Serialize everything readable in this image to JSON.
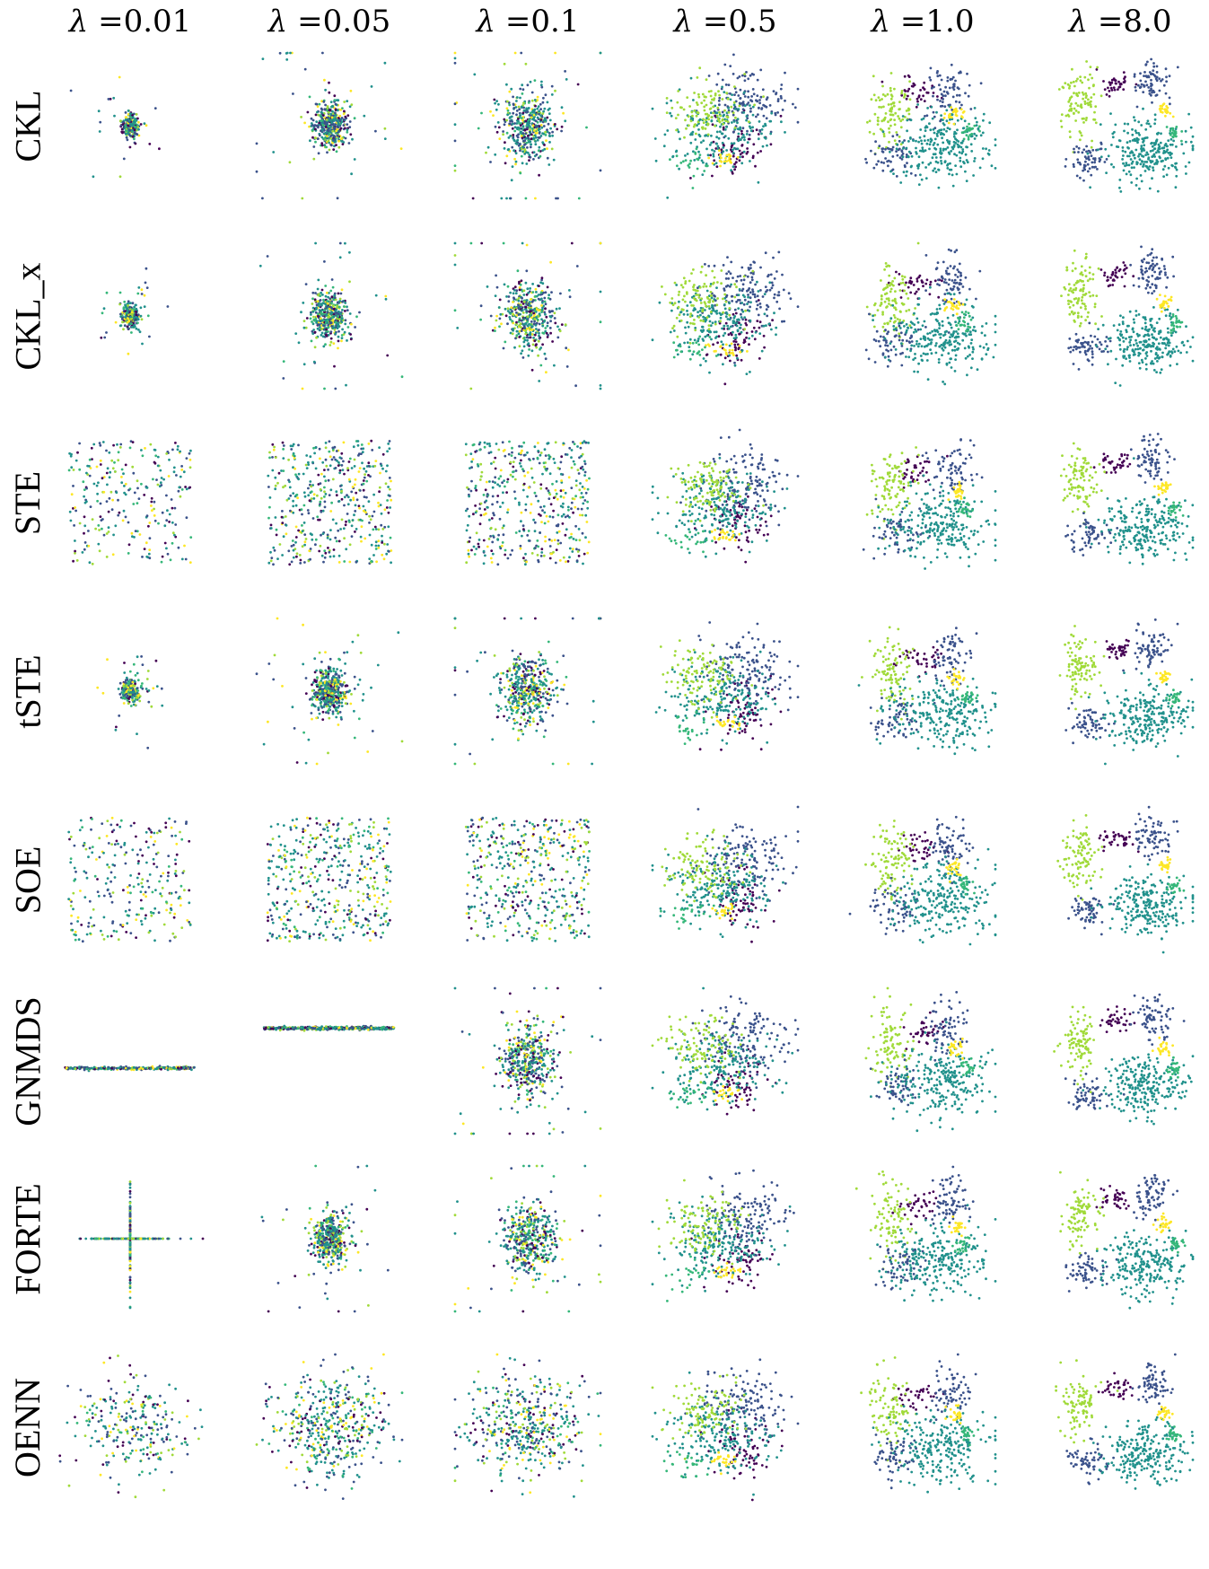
{
  "chart_data": {
    "type": "scatter",
    "title": "",
    "lambda_symbol": "λ",
    "columns": [
      "=0.01",
      "=0.05",
      "=0.1",
      "=0.5",
      "=1.0",
      "=8.0"
    ],
    "rows": [
      "CKL",
      "CKL_x",
      "STE",
      "tSTE",
      "SOE",
      "GNMDS",
      "FORTE",
      "OENN"
    ],
    "axes": "hidden",
    "grid": false,
    "legend": "none",
    "colormap": [
      "#440154",
      "#3b528b",
      "#21918c",
      "#5ec962",
      "#a0da39",
      "#fde725",
      "#2c7fb8",
      "#1f9e89",
      "#35b779"
    ],
    "class_colors": {
      "dark_purple": "#440154",
      "blue": "#3b528b",
      "teal": "#21918c",
      "green": "#35b779",
      "light_green": "#a0da39",
      "yellow": "#fde725"
    },
    "clusters_high_lambda": [
      {
        "class": "dark_purple",
        "share": 0.06
      },
      {
        "class": "blue",
        "share": 0.28
      },
      {
        "class": "teal",
        "share": 0.36
      },
      {
        "class": "light_green",
        "share": 0.18
      },
      {
        "class": "yellow",
        "share": 0.04
      },
      {
        "class": "green",
        "share": 0.08
      }
    ]
  }
}
